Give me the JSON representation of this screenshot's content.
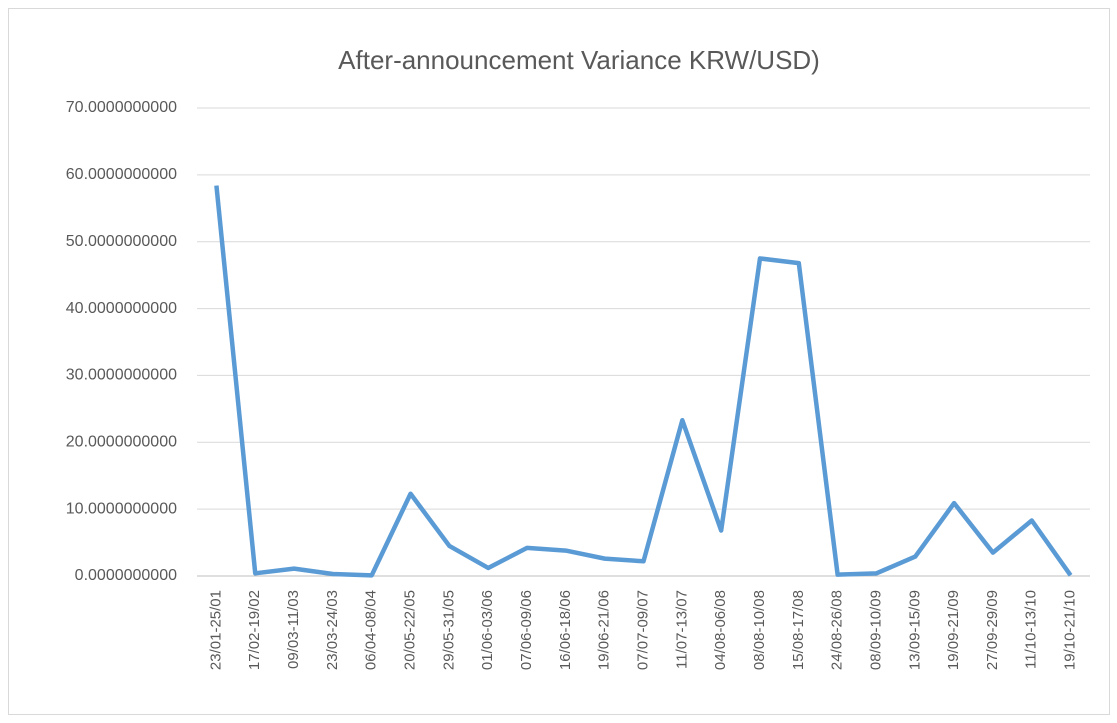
{
  "chart_data": {
    "type": "line",
    "title": "After-announcement Variance KRW/USD)",
    "categories": [
      "23/01-25/01",
      "17/02-19/02",
      "09/03-11/03",
      "23/03-24/03",
      "06/04-08/04",
      "20/05-22/05",
      "29/05-31/05",
      "01/06-03/06",
      "07/06-09/06",
      "16/06-18/06",
      "19/06-21/06",
      "07/07-09/07",
      "11/07-13/07",
      "04/08-06/08",
      "08/08-10/08",
      "15/08-17/08",
      "24/08-26/08",
      "08/09-10/09",
      "13/09-15/09",
      "19/09-21/09",
      "27/09-29/09",
      "11/10-13/10",
      "19/10-21/10"
    ],
    "series": [
      {
        "name": "After-announcement Variance",
        "color": "#5b9bd5",
        "values": [
          58.4,
          0.4,
          1.1,
          0.3,
          0.1,
          12.3,
          4.5,
          1.2,
          4.2,
          3.8,
          2.6,
          2.2,
          23.3,
          6.8,
          47.5,
          46.8,
          0.2,
          0.4,
          2.9,
          10.9,
          3.5,
          8.3,
          0.1
        ]
      }
    ],
    "ylim": [
      0,
      70
    ],
    "yticks": [
      {
        "value": 0,
        "label": "0.0000000000"
      },
      {
        "value": 10,
        "label": "10.0000000000"
      },
      {
        "value": 20,
        "label": "20.0000000000"
      },
      {
        "value": 30,
        "label": "30.0000000000"
      },
      {
        "value": 40,
        "label": "40.0000000000"
      },
      {
        "value": 50,
        "label": "50.0000000000"
      },
      {
        "value": 60,
        "label": "60.0000000000"
      },
      {
        "value": 70,
        "label": "70.0000000000"
      }
    ],
    "grid": true
  }
}
